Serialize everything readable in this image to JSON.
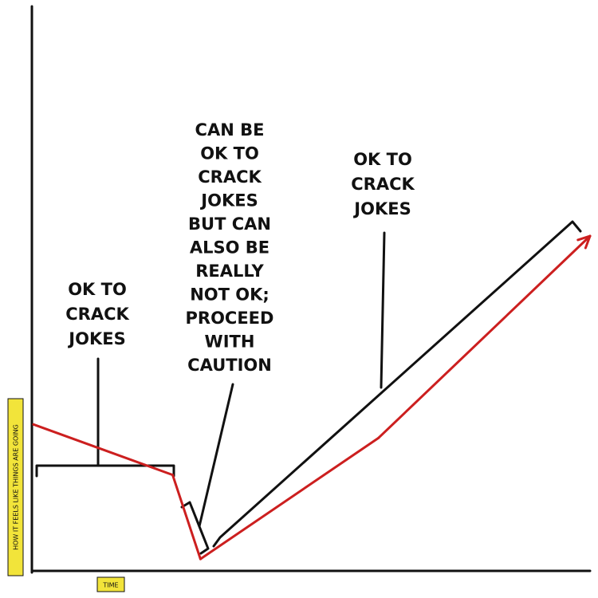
{
  "chart_data": {
    "type": "line",
    "title": "",
    "xlabel": "TIME",
    "ylabel": "HOW IT FEELS LIKE THINGS ARE GOING",
    "grid": false,
    "legend": "none",
    "ticks": "none",
    "series": [
      {
        "color": "#cc1f1f",
        "points": [
          {
            "x": 0.0,
            "y": 0.44
          },
          {
            "x": 0.25,
            "y": 0.29
          },
          {
            "x": 0.3,
            "y": 0.04
          },
          {
            "x": 0.62,
            "y": 0.4
          },
          {
            "x": 1.0,
            "y": 1.0
          }
        ]
      }
    ],
    "annotations": [
      {
        "text_lines": [
          "OK TO",
          "CRACK",
          "JOKES"
        ],
        "x_start": 0.0,
        "x_end": 0.25
      },
      {
        "text_lines": [
          "CAN BE",
          "OK TO",
          "CRACK",
          "JOKES",
          "BUT CAN",
          "ALSO BE",
          "REALLY",
          "NOT OK;",
          "PROCEED",
          "WITH",
          "CAUTION"
        ],
        "x_start": 0.25,
        "x_end": 0.3
      },
      {
        "text_lines": [
          "OK TO",
          "CRACK",
          "JOKES"
        ],
        "x_start": 0.3,
        "x_end": 1.0
      }
    ]
  }
}
